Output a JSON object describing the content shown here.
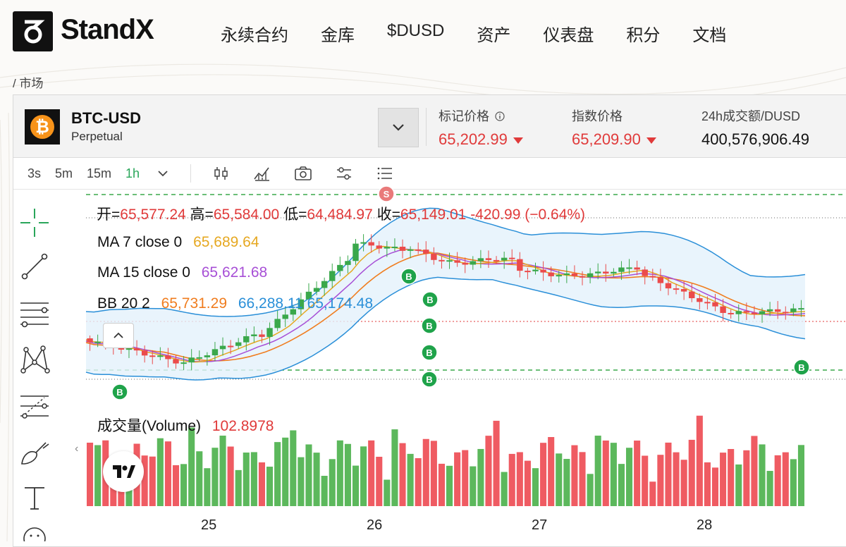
{
  "brand": {
    "name": "StandX"
  },
  "nav": {
    "items": [
      "永续合约",
      "金库",
      "$DUSD",
      "资产",
      "仪表盘",
      "积分",
      "文档"
    ]
  },
  "breadcrumb": "/ 市场",
  "market": {
    "symbol": "BTC-USD",
    "type": "Perpetual",
    "mark_label": "标记价格",
    "mark_price": "65,202.99",
    "index_label": "指数价格",
    "index_price": "65,209.90",
    "vol_label": "24h成交额/DUSD",
    "vol_value": "400,576,906.49"
  },
  "toolbar": {
    "timeframes": [
      "3s",
      "5m",
      "15m",
      "1h"
    ],
    "active": "1h"
  },
  "ohlc": {
    "open_label": "开=",
    "open": "65,577.24",
    "high_label": "高=",
    "high": "65,584.00",
    "low_label": "低=",
    "low": "64,484.97",
    "close_label": "收=",
    "close": "65,149.01",
    "change": "-420.99 (−0.64%)"
  },
  "indicators": {
    "ma7_label": "MA 7 close 0",
    "ma7_value": "65,689.64",
    "ma15_label": "MA 15 close 0",
    "ma15_value": "65,621.68",
    "bb_label": "BB 20 2",
    "bb_mid": "65,731.29",
    "bb_upper": "66,288.11",
    "bb_lower": "65,174.48"
  },
  "volume": {
    "label": "成交量(Volume)",
    "value": "102.8978"
  },
  "x_axis": {
    "labels": [
      "25",
      "26",
      "27",
      "28"
    ]
  },
  "colors": {
    "up": "#3aa84b",
    "down": "#eb4b4b",
    "ma7": "#e6a821",
    "ma15": "#a74fd6",
    "bb_mid": "#f07d1f",
    "bb_band": "#2a8fd8",
    "brand": "#111111",
    "accent": "#2aa65a",
    "mark_red": "#e03a3a"
  },
  "icons": [
    "caret-down-icon",
    "candles-icon",
    "indicators-icon",
    "camera-icon",
    "settings-icon",
    "list-icon",
    "crosshair-icon",
    "trend-line-icon",
    "fib-icon",
    "pattern-icon",
    "projection-icon",
    "brush-icon",
    "text-icon",
    "emoji-icon",
    "info-icon",
    "tradingview-logo"
  ]
}
